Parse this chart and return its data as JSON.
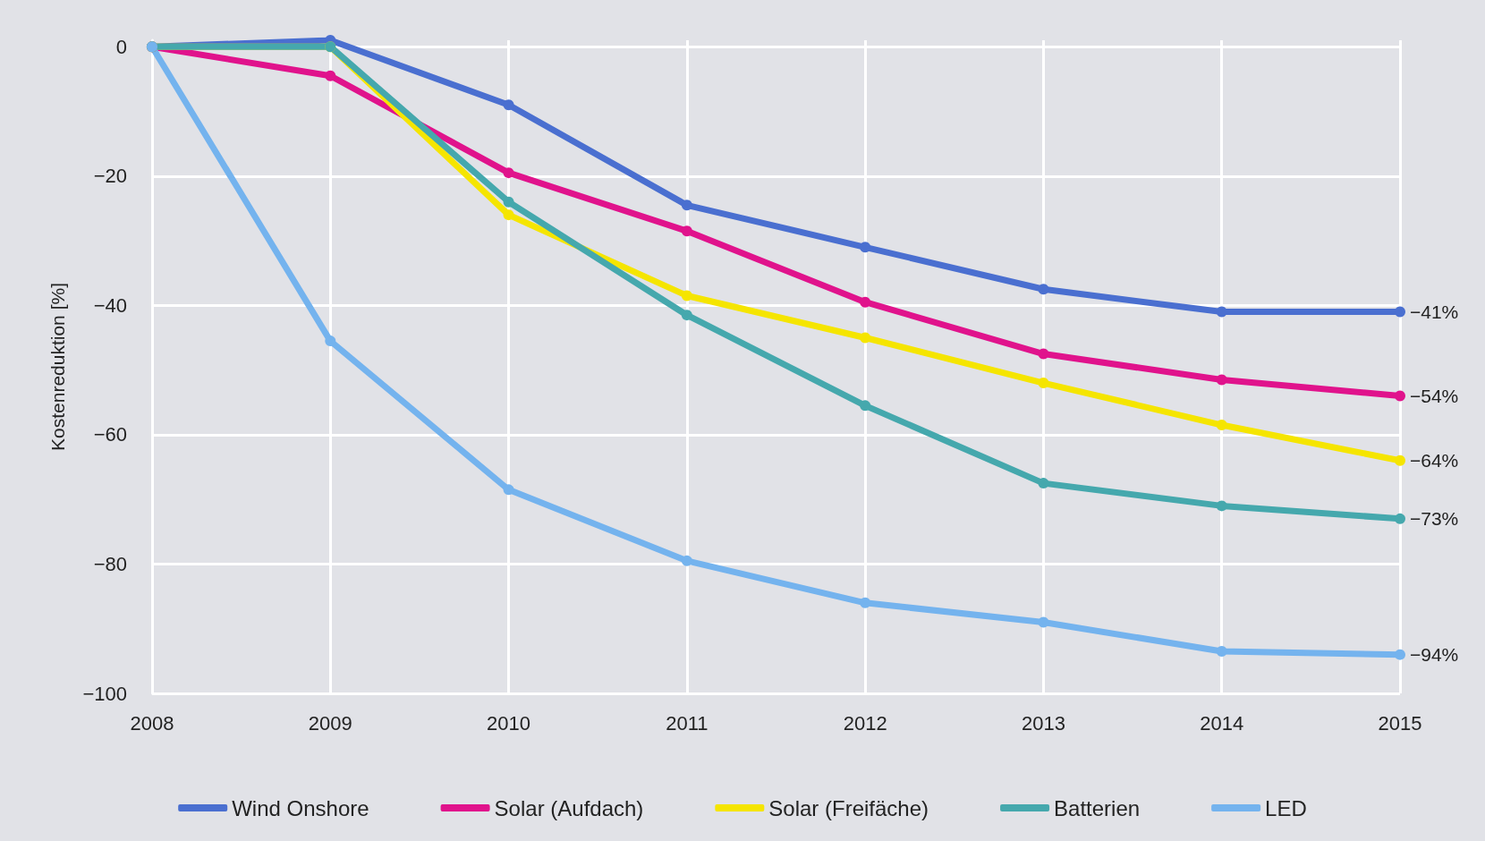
{
  "chart_data": {
    "type": "line",
    "ylabel": "Kostenreduktion [%]",
    "x": [
      2008,
      2009,
      2010,
      2011,
      2012,
      2013,
      2014,
      2015
    ],
    "xlim": [
      2008,
      2015
    ],
    "xticks": [
      2008,
      2009,
      2010,
      2011,
      2012,
      2013,
      2014,
      2015
    ],
    "ylim": [
      -100,
      1
    ],
    "yticks": [
      0,
      -20,
      -40,
      -60,
      -80,
      -100
    ],
    "grid": true,
    "legend": "bottom",
    "marker": "circle",
    "line_style": "solid",
    "series": [
      {
        "name": "Wind Onshore",
        "color": "#4a6fd0",
        "values": [
          0,
          1,
          -9,
          -24.5,
          -31,
          -37.5,
          -41,
          -41
        ],
        "value_labels": [
          null,
          null,
          null,
          null,
          null,
          null,
          null,
          "−41%"
        ]
      },
      {
        "name": "Solar (Aufdach)",
        "color": "#e0138c",
        "values": [
          0,
          -4.5,
          -19.5,
          -28.5,
          -39.5,
          -47.5,
          -51.5,
          -54
        ],
        "value_labels": [
          null,
          null,
          null,
          null,
          null,
          null,
          null,
          "−54%"
        ]
      },
      {
        "name": "Solar (Freifäche)",
        "color": "#f5e500",
        "values": [
          0,
          0,
          -26,
          -38.5,
          -45,
          -52,
          -58.5,
          -64
        ],
        "value_labels": [
          null,
          null,
          null,
          null,
          null,
          null,
          null,
          "−64%"
        ]
      },
      {
        "name": "Batterien",
        "color": "#45a8ad",
        "values": [
          0,
          0,
          -24,
          -41.5,
          -55.5,
          -67.5,
          -71,
          -73
        ],
        "value_labels": [
          null,
          null,
          null,
          null,
          null,
          null,
          null,
          "−73%"
        ]
      },
      {
        "name": "LED",
        "color": "#74b3ee",
        "values": [
          0,
          -45.5,
          -68.5,
          -79.5,
          -86,
          -89,
          -93.5,
          -94
        ],
        "value_labels": [
          null,
          null,
          null,
          null,
          null,
          null,
          null,
          "−94%"
        ]
      }
    ]
  }
}
